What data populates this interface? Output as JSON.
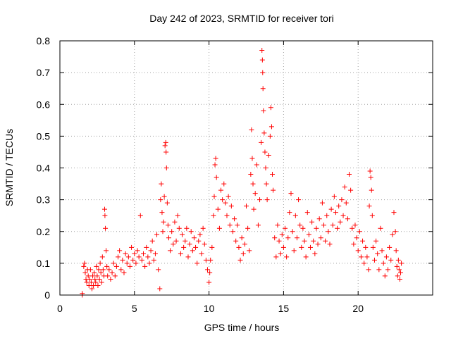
{
  "chart_data": {
    "type": "scatter",
    "title": "Day 242 of 2023, SRMTID for receiver tori",
    "xlabel": "GPS time / hours",
    "ylabel": "SRMTID / TECUs",
    "xlim": [
      0,
      25
    ],
    "ylim": [
      0,
      0.8
    ],
    "xticks": [
      0,
      5,
      10,
      15,
      20
    ],
    "yticks": [
      0,
      0.1,
      0.2,
      0.3,
      0.4,
      0.5,
      0.6,
      0.7,
      0.8
    ],
    "xtick_labels": [
      "0",
      "5",
      "10",
      "15",
      "20"
    ],
    "ytick_labels": [
      "0",
      "0.1",
      "0.2",
      "0.3",
      "0.4",
      "0.5",
      "0.6",
      "0.7",
      "0.8"
    ],
    "grid": true,
    "marker": "+",
    "color": "#ff0000",
    "series": [
      {
        "name": "SRMTID",
        "points": [
          [
            1.5,
            0.0
          ],
          [
            1.5,
            0.005
          ],
          [
            1.6,
            0.09
          ],
          [
            1.65,
            0.1
          ],
          [
            1.7,
            0.07
          ],
          [
            1.75,
            0.05
          ],
          [
            1.8,
            0.04
          ],
          [
            1.85,
            0.08
          ],
          [
            1.9,
            0.06
          ],
          [
            1.95,
            0.03
          ],
          [
            2.0,
            0.05
          ],
          [
            2.05,
            0.08
          ],
          [
            2.1,
            0.04
          ],
          [
            2.15,
            0.02
          ],
          [
            2.2,
            0.06
          ],
          [
            2.25,
            0.03
          ],
          [
            2.3,
            0.07
          ],
          [
            2.35,
            0.05
          ],
          [
            2.4,
            0.04
          ],
          [
            2.45,
            0.09
          ],
          [
            2.5,
            0.06
          ],
          [
            2.55,
            0.03
          ],
          [
            2.6,
            0.08
          ],
          [
            2.65,
            0.05
          ],
          [
            2.7,
            0.1
          ],
          [
            2.75,
            0.07
          ],
          [
            2.8,
            0.04
          ],
          [
            2.85,
            0.12
          ],
          [
            2.9,
            0.08
          ],
          [
            2.95,
            0.06
          ],
          [
            3.0,
            0.27
          ],
          [
            3.02,
            0.25
          ],
          [
            3.05,
            0.21
          ],
          [
            3.1,
            0.14
          ],
          [
            3.15,
            0.09
          ],
          [
            3.2,
            0.06
          ],
          [
            3.3,
            0.08
          ],
          [
            3.4,
            0.05
          ],
          [
            3.5,
            0.07
          ],
          [
            3.6,
            0.1
          ],
          [
            3.7,
            0.06
          ],
          [
            3.8,
            0.09
          ],
          [
            3.9,
            0.12
          ],
          [
            4.0,
            0.14
          ],
          [
            4.1,
            0.08
          ],
          [
            4.2,
            0.11
          ],
          [
            4.3,
            0.07
          ],
          [
            4.4,
            0.13
          ],
          [
            4.5,
            0.1
          ],
          [
            4.6,
            0.12
          ],
          [
            4.7,
            0.09
          ],
          [
            4.8,
            0.15
          ],
          [
            4.9,
            0.11
          ],
          [
            5.0,
            0.13
          ],
          [
            5.1,
            0.1
          ],
          [
            5.2,
            0.14
          ],
          [
            5.3,
            0.12
          ],
          [
            5.4,
            0.25
          ],
          [
            5.5,
            0.11
          ],
          [
            5.6,
            0.13
          ],
          [
            5.7,
            0.09
          ],
          [
            5.8,
            0.15
          ],
          [
            5.9,
            0.12
          ],
          [
            6.0,
            0.1
          ],
          [
            6.1,
            0.14
          ],
          [
            6.2,
            0.17
          ],
          [
            6.3,
            0.11
          ],
          [
            6.4,
            0.13
          ],
          [
            6.5,
            0.19
          ],
          [
            6.6,
            0.08
          ],
          [
            6.7,
            0.02
          ],
          [
            6.75,
            0.3
          ],
          [
            6.8,
            0.35
          ],
          [
            6.85,
            0.26
          ],
          [
            6.9,
            0.2
          ],
          [
            6.95,
            0.23
          ],
          [
            7.0,
            0.31
          ],
          [
            7.05,
            0.47
          ],
          [
            7.1,
            0.48
          ],
          [
            7.12,
            0.45
          ],
          [
            7.15,
            0.4
          ],
          [
            7.2,
            0.29
          ],
          [
            7.25,
            0.22
          ],
          [
            7.3,
            0.18
          ],
          [
            7.4,
            0.14
          ],
          [
            7.5,
            0.2
          ],
          [
            7.6,
            0.16
          ],
          [
            7.7,
            0.23
          ],
          [
            7.8,
            0.17
          ],
          [
            7.9,
            0.25
          ],
          [
            8.0,
            0.21
          ],
          [
            8.1,
            0.13
          ],
          [
            8.2,
            0.19
          ],
          [
            8.3,
            0.15
          ],
          [
            8.4,
            0.17
          ],
          [
            8.5,
            0.21
          ],
          [
            8.6,
            0.12
          ],
          [
            8.7,
            0.16
          ],
          [
            8.8,
            0.2
          ],
          [
            8.9,
            0.14
          ],
          [
            9.0,
            0.18
          ],
          [
            9.1,
            0.15
          ],
          [
            9.2,
            0.1
          ],
          [
            9.3,
            0.17
          ],
          [
            9.4,
            0.19
          ],
          [
            9.5,
            0.13
          ],
          [
            9.6,
            0.21
          ],
          [
            9.7,
            0.16
          ],
          [
            9.8,
            0.11
          ],
          [
            9.9,
            0.08
          ],
          [
            10.0,
            0.04
          ],
          [
            10.05,
            0.07
          ],
          [
            10.1,
            0.11
          ],
          [
            10.2,
            0.15
          ],
          [
            10.3,
            0.25
          ],
          [
            10.35,
            0.31
          ],
          [
            10.4,
            0.41
          ],
          [
            10.45,
            0.43
          ],
          [
            10.5,
            0.37
          ],
          [
            10.6,
            0.27
          ],
          [
            10.7,
            0.21
          ],
          [
            10.8,
            0.33
          ],
          [
            10.9,
            0.3
          ],
          [
            11.0,
            0.35
          ],
          [
            11.1,
            0.29
          ],
          [
            11.2,
            0.25
          ],
          [
            11.3,
            0.31
          ],
          [
            11.4,
            0.22
          ],
          [
            11.5,
            0.28
          ],
          [
            11.6,
            0.2
          ],
          [
            11.7,
            0.24
          ],
          [
            11.8,
            0.17
          ],
          [
            11.9,
            0.22
          ],
          [
            12.0,
            0.15
          ],
          [
            12.1,
            0.11
          ],
          [
            12.2,
            0.18
          ],
          [
            12.3,
            0.13
          ],
          [
            12.4,
            0.16
          ],
          [
            12.5,
            0.28
          ],
          [
            12.6,
            0.21
          ],
          [
            12.7,
            0.14
          ],
          [
            12.8,
            0.38
          ],
          [
            12.85,
            0.52
          ],
          [
            12.9,
            0.43
          ],
          [
            12.95,
            0.35
          ],
          [
            13.0,
            0.27
          ],
          [
            13.1,
            0.32
          ],
          [
            13.2,
            0.41
          ],
          [
            13.3,
            0.22
          ],
          [
            13.4,
            0.3
          ],
          [
            13.5,
            0.48
          ],
          [
            13.55,
            0.77
          ],
          [
            13.58,
            0.74
          ],
          [
            13.6,
            0.7
          ],
          [
            13.62,
            0.65
          ],
          [
            13.65,
            0.58
          ],
          [
            13.7,
            0.51
          ],
          [
            13.75,
            0.45
          ],
          [
            13.8,
            0.4
          ],
          [
            13.85,
            0.35
          ],
          [
            13.9,
            0.3
          ],
          [
            14.0,
            0.44
          ],
          [
            14.1,
            0.5
          ],
          [
            14.15,
            0.59
          ],
          [
            14.2,
            0.53
          ],
          [
            14.25,
            0.38
          ],
          [
            14.3,
            0.33
          ],
          [
            14.4,
            0.18
          ],
          [
            14.5,
            0.12
          ],
          [
            14.6,
            0.22
          ],
          [
            14.7,
            0.17
          ],
          [
            14.8,
            0.13
          ],
          [
            14.9,
            0.19
          ],
          [
            15.0,
            0.15
          ],
          [
            15.1,
            0.21
          ],
          [
            15.2,
            0.12
          ],
          [
            15.3,
            0.18
          ],
          [
            15.4,
            0.26
          ],
          [
            15.5,
            0.32
          ],
          [
            15.6,
            0.2
          ],
          [
            15.7,
            0.14
          ],
          [
            15.8,
            0.25
          ],
          [
            15.9,
            0.18
          ],
          [
            16.0,
            0.3
          ],
          [
            16.1,
            0.22
          ],
          [
            16.2,
            0.15
          ],
          [
            16.3,
            0.21
          ],
          [
            16.4,
            0.17
          ],
          [
            16.5,
            0.12
          ],
          [
            16.6,
            0.26
          ],
          [
            16.7,
            0.19
          ],
          [
            16.8,
            0.15
          ],
          [
            16.9,
            0.23
          ],
          [
            17.0,
            0.17
          ],
          [
            17.1,
            0.13
          ],
          [
            17.2,
            0.21
          ],
          [
            17.3,
            0.16
          ],
          [
            17.4,
            0.24
          ],
          [
            17.5,
            0.18
          ],
          [
            17.6,
            0.29
          ],
          [
            17.7,
            0.22
          ],
          [
            17.8,
            0.17
          ],
          [
            17.9,
            0.25
          ],
          [
            18.0,
            0.2
          ],
          [
            18.1,
            0.16
          ],
          [
            18.2,
            0.27
          ],
          [
            18.3,
            0.22
          ],
          [
            18.4,
            0.31
          ],
          [
            18.5,
            0.26
          ],
          [
            18.6,
            0.21
          ],
          [
            18.7,
            0.28
          ],
          [
            18.8,
            0.23
          ],
          [
            18.9,
            0.3
          ],
          [
            19.0,
            0.25
          ],
          [
            19.1,
            0.34
          ],
          [
            19.2,
            0.29
          ],
          [
            19.3,
            0.24
          ],
          [
            19.4,
            0.38
          ],
          [
            19.5,
            0.33
          ],
          [
            19.6,
            0.21
          ],
          [
            19.7,
            0.16
          ],
          [
            19.8,
            0.22
          ],
          [
            19.9,
            0.18
          ],
          [
            20.0,
            0.14
          ],
          [
            20.1,
            0.2
          ],
          [
            20.2,
            0.12
          ],
          [
            20.3,
            0.17
          ],
          [
            20.4,
            0.1
          ],
          [
            20.5,
            0.15
          ],
          [
            20.6,
            0.12
          ],
          [
            20.7,
            0.08
          ],
          [
            20.75,
            0.28
          ],
          [
            20.8,
            0.39
          ],
          [
            20.85,
            0.37
          ],
          [
            20.9,
            0.33
          ],
          [
            20.95,
            0.25
          ],
          [
            21.0,
            0.15
          ],
          [
            21.1,
            0.11
          ],
          [
            21.2,
            0.17
          ],
          [
            21.3,
            0.13
          ],
          [
            21.4,
            0.08
          ],
          [
            21.5,
            0.21
          ],
          [
            21.6,
            0.14
          ],
          [
            21.7,
            0.1
          ],
          [
            21.8,
            0.06
          ],
          [
            21.9,
            0.12
          ],
          [
            22.0,
            0.08
          ],
          [
            22.1,
            0.15
          ],
          [
            22.2,
            0.11
          ],
          [
            22.3,
            0.19
          ],
          [
            22.4,
            0.26
          ],
          [
            22.5,
            0.2
          ],
          [
            22.55,
            0.14
          ],
          [
            22.6,
            0.09
          ],
          [
            22.65,
            0.06
          ],
          [
            22.7,
            0.11
          ],
          [
            22.75,
            0.08
          ],
          [
            22.8,
            0.05
          ],
          [
            22.85,
            0.07
          ],
          [
            22.9,
            0.1
          ]
        ]
      }
    ]
  }
}
